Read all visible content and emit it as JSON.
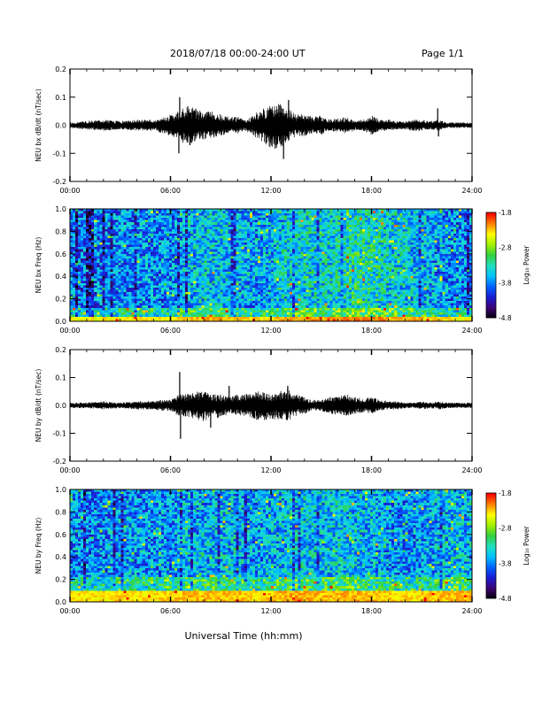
{
  "header": {
    "date_range": "2018/07/18  00:00-24:00 UT",
    "page": "Page 1/1"
  },
  "footer": {
    "xaxis_title": "Universal Time (hh:mm)"
  },
  "colors": {
    "trace": "#000000",
    "background": "#ffffff",
    "colormap": [
      "#000000",
      "#3a0070",
      "#1a1ad0",
      "#0060ff",
      "#00c0ff",
      "#20e0c0",
      "#30d040",
      "#a0f000",
      "#ffff00",
      "#ff8000",
      "#ff0000"
    ]
  },
  "chart_data": [
    {
      "type": "line",
      "ylabel": "NEU bx dB/dt (nT/sec)",
      "ylim": [
        -0.2,
        0.2
      ],
      "yticks": [
        "0.2",
        "0.1",
        "0.0",
        "-0.1",
        "-0.2"
      ],
      "xlim": [
        0,
        24
      ],
      "xticks": [
        "00:00",
        "06:00",
        "12:00",
        "18:00",
        "24:00"
      ],
      "envelope": {
        "hours": [
          0,
          1,
          2,
          3,
          4,
          5,
          5.5,
          6,
          6.5,
          7,
          7.5,
          8,
          8.5,
          9,
          9.5,
          10,
          10.5,
          11,
          11.5,
          12,
          12.5,
          13,
          13.5,
          14,
          14.5,
          15,
          15.5,
          16,
          16.5,
          17,
          17.5,
          18,
          18.5,
          19,
          19.5,
          20,
          20.5,
          21,
          21.5,
          22,
          22.5,
          23,
          24
        ],
        "max": [
          0.01,
          0.015,
          0.02,
          0.015,
          0.02,
          0.02,
          0.03,
          0.04,
          0.05,
          0.07,
          0.06,
          0.05,
          0.05,
          0.04,
          0.03,
          0.03,
          0.02,
          0.04,
          0.06,
          0.07,
          0.08,
          0.06,
          0.04,
          0.04,
          0.03,
          0.035,
          0.02,
          0.025,
          0.03,
          0.02,
          0.02,
          0.035,
          0.02,
          0.02,
          0.015,
          0.015,
          0.02,
          0.02,
          0.015,
          0.02,
          0.01,
          0.01,
          0.01
        ],
        "min": [
          -0.01,
          -0.015,
          -0.02,
          -0.015,
          -0.02,
          -0.02,
          -0.03,
          -0.04,
          -0.05,
          -0.08,
          -0.06,
          -0.05,
          -0.05,
          -0.04,
          -0.03,
          -0.03,
          -0.02,
          -0.04,
          -0.06,
          -0.08,
          -0.09,
          -0.06,
          -0.04,
          -0.04,
          -0.03,
          -0.035,
          -0.02,
          -0.025,
          -0.03,
          -0.02,
          -0.02,
          -0.035,
          -0.02,
          -0.02,
          -0.015,
          -0.015,
          -0.02,
          -0.02,
          -0.015,
          -0.02,
          -0.01,
          -0.01,
          -0.01
        ]
      },
      "spikes": [
        {
          "hour": 6.55,
          "value": 0.1
        },
        {
          "hour": 6.5,
          "value": -0.1
        },
        {
          "hour": 12.75,
          "value": -0.12
        },
        {
          "hour": 13.05,
          "value": 0.09
        },
        {
          "hour": 21.95,
          "value": 0.06
        },
        {
          "hour": 22.0,
          "value": -0.04
        }
      ]
    },
    {
      "type": "heatmap",
      "ylabel": "NEU bx Freq (Hz)",
      "ylim": [
        0.0,
        1.0
      ],
      "yticks": [
        "1.0",
        "0.8",
        "0.6",
        "0.4",
        "0.2",
        "0.0"
      ],
      "xlim": [
        0,
        24
      ],
      "xticks": [
        "00:00",
        "06:00",
        "12:00",
        "18:00",
        "24:00"
      ],
      "colorbar": {
        "label": "Log₁₀ Power",
        "ticks": [
          "-1.8",
          "-2.8",
          "-3.8",
          "-4.8"
        ],
        "range": [
          -4.8,
          -1.8
        ]
      },
      "activity_by_hour": [
        0.35,
        0.35,
        0.38,
        0.4,
        0.42,
        0.4,
        0.42,
        0.5,
        0.55,
        0.55,
        0.5,
        0.45,
        0.5,
        0.6,
        0.62,
        0.6,
        0.65,
        0.7,
        0.68,
        0.6,
        0.55,
        0.5,
        0.45,
        0.4,
        0.35
      ],
      "low_freq_band_max": 0.05
    },
    {
      "type": "line",
      "ylabel": "NEU by dB/dt (nT/sec)",
      "ylim": [
        -0.2,
        0.2
      ],
      "yticks": [
        "0.2",
        "0.1",
        "0.0",
        "-0.1",
        "-0.2"
      ],
      "xlim": [
        0,
        24
      ],
      "xticks": [
        "00:00",
        "06:00",
        "12:00",
        "18:00",
        "24:00"
      ],
      "envelope": {
        "hours": [
          0,
          1,
          2,
          3,
          4,
          5,
          5.5,
          6,
          6.5,
          7,
          7.5,
          8,
          8.5,
          9,
          9.5,
          10,
          10.5,
          11,
          11.5,
          12,
          12.5,
          13,
          13.5,
          14,
          14.5,
          15,
          15.5,
          16,
          16.5,
          17,
          17.5,
          18,
          18.5,
          19,
          19.5,
          20,
          20.5,
          21,
          21.5,
          22,
          22.5,
          23,
          24
        ],
        "max": [
          0.01,
          0.01,
          0.015,
          0.01,
          0.015,
          0.015,
          0.02,
          0.02,
          0.04,
          0.04,
          0.05,
          0.05,
          0.04,
          0.04,
          0.03,
          0.04,
          0.04,
          0.05,
          0.05,
          0.04,
          0.05,
          0.06,
          0.04,
          0.03,
          0.02,
          0.02,
          0.03,
          0.035,
          0.04,
          0.03,
          0.025,
          0.03,
          0.02,
          0.015,
          0.015,
          0.01,
          0.01,
          0.015,
          0.01,
          0.015,
          0.01,
          0.01,
          0.01
        ],
        "min": [
          -0.01,
          -0.01,
          -0.015,
          -0.01,
          -0.015,
          -0.015,
          -0.02,
          -0.02,
          -0.04,
          -0.04,
          -0.05,
          -0.06,
          -0.04,
          -0.05,
          -0.03,
          -0.04,
          -0.04,
          -0.05,
          -0.06,
          -0.05,
          -0.05,
          -0.06,
          -0.04,
          -0.03,
          -0.02,
          -0.02,
          -0.03,
          -0.035,
          -0.04,
          -0.03,
          -0.025,
          -0.03,
          -0.02,
          -0.015,
          -0.015,
          -0.01,
          -0.01,
          -0.015,
          -0.01,
          -0.015,
          -0.01,
          -0.01,
          -0.01
        ]
      },
      "spikes": [
        {
          "hour": 6.55,
          "value": 0.12
        },
        {
          "hour": 6.6,
          "value": -0.12
        },
        {
          "hour": 8.4,
          "value": -0.08
        },
        {
          "hour": 9.5,
          "value": 0.07
        },
        {
          "hour": 13.0,
          "value": 0.07
        }
      ]
    },
    {
      "type": "heatmap",
      "ylabel": "NEU by Freq (Hz)",
      "ylim": [
        0.0,
        1.0
      ],
      "yticks": [
        "1.0",
        "0.8",
        "0.6",
        "0.4",
        "0.2",
        "0.0"
      ],
      "xlim": [
        0,
        24
      ],
      "xticks": [
        "00:00",
        "06:00",
        "12:00",
        "18:00",
        "24:00"
      ],
      "colorbar": {
        "label": "Log₁₀ Power",
        "ticks": [
          "-1.8",
          "-2.8",
          "-3.8",
          "-4.8"
        ],
        "range": [
          -4.8,
          -1.8
        ]
      },
      "activity_by_hour": [
        0.42,
        0.4,
        0.42,
        0.45,
        0.45,
        0.42,
        0.45,
        0.5,
        0.5,
        0.52,
        0.5,
        0.45,
        0.5,
        0.55,
        0.55,
        0.52,
        0.55,
        0.55,
        0.5,
        0.45,
        0.42,
        0.45,
        0.5,
        0.55,
        0.5
      ],
      "low_freq_band_max": 0.1
    }
  ]
}
